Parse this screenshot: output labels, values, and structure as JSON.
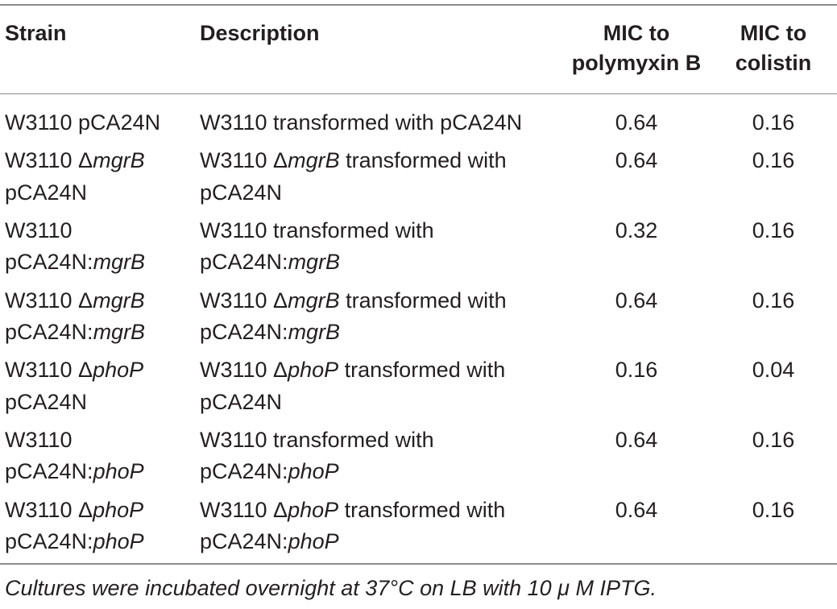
{
  "table": {
    "headers": {
      "strain": "Strain",
      "description": "Description",
      "mic_polymyxin_line1": "MIC to",
      "mic_polymyxin_line2": "polymyxin B",
      "mic_colistin_line1": "MIC to",
      "mic_colistin_line2": "colistin"
    },
    "rows": [
      {
        "strain": [
          "W3110 pCA24N"
        ],
        "description": [
          "W3110 transformed with pCA24N"
        ],
        "mic_polymyxin_b": "0.64",
        "mic_colistin": "0.16"
      },
      {
        "strain": [
          "W3110 ",
          "Δ",
          "mgrB",
          "pCA24N"
        ],
        "description": [
          "W3110 ",
          "Δ",
          "mgrB",
          " transformed with",
          "pCA24N"
        ],
        "mic_polymyxin_b": "0.64",
        "mic_colistin": "0.16"
      },
      {
        "strain": [
          "W3110",
          "pCA24N:",
          "mgrB"
        ],
        "description": [
          "W3110 transformed with",
          "pCA24N:",
          "mgrB"
        ],
        "mic_polymyxin_b": "0.32",
        "mic_colistin": "0.16"
      },
      {
        "strain": [
          "W3110 ",
          "Δ",
          "mgrB",
          "pCA24N:",
          "mgrB"
        ],
        "description": [
          "W3110 ",
          "Δ",
          "mgrB",
          " transformed with",
          "pCA24N:",
          "mgrB"
        ],
        "mic_polymyxin_b": "0.64",
        "mic_colistin": "0.16"
      },
      {
        "strain": [
          "W3110 ",
          "Δ",
          "phoP",
          "pCA24N"
        ],
        "description": [
          "W3110 ",
          "Δ",
          "phoP",
          " transformed with",
          "pCA24N"
        ],
        "mic_polymyxin_b": "0.16",
        "mic_colistin": "0.04"
      },
      {
        "strain": [
          "W3110",
          "pCA24N:",
          "phoP"
        ],
        "description": [
          "W3110 transformed with",
          "pCA24N:",
          "phoP"
        ],
        "mic_polymyxin_b": "0.64",
        "mic_colistin": "0.16"
      },
      {
        "strain": [
          "W3110 ",
          "Δ",
          "phoP",
          "pCA24N:",
          "phoP"
        ],
        "description": [
          "W3110 ",
          "Δ",
          "phoP",
          " transformed with",
          "pCA24N:",
          "phoP"
        ],
        "mic_polymyxin_b": "0.64",
        "mic_colistin": "0.16"
      }
    ]
  },
  "footnote": "Cultures were incubated overnight at 37°C on LB with 10 μ M IPTG."
}
